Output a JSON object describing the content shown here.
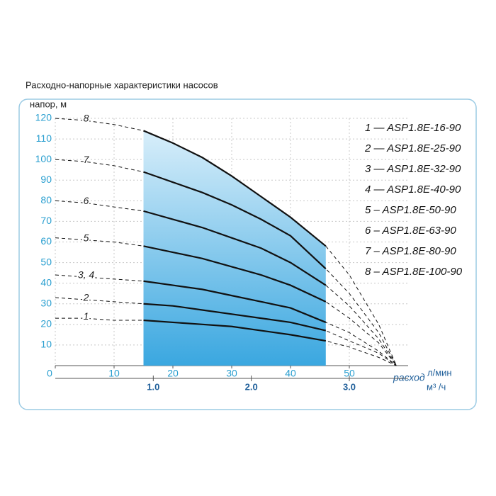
{
  "chart_data": {
    "type": "line",
    "title": "Расходно-напорные характеристики насосов",
    "ylabel": "напор, м",
    "xlabel": "расход",
    "xunit": "л/мин",
    "x2unit": "м³ /ч",
    "x": [
      0,
      5,
      10,
      15,
      20,
      25,
      30,
      35,
      40,
      46,
      50,
      55,
      58
    ],
    "xlim": [
      0,
      60
    ],
    "ylim": [
      0,
      120
    ],
    "xticks": [
      0,
      10,
      20,
      30,
      40,
      50
    ],
    "yticks": [
      10,
      20,
      30,
      40,
      50,
      60,
      70,
      80,
      90,
      100,
      110,
      120
    ],
    "x2lim": [
      0,
      3.6
    ],
    "x2ticks": [
      {
        "value": 1,
        "label": "1.0"
      },
      {
        "value": 2,
        "label": "2.0"
      },
      {
        "value": 3,
        "label": "3.0"
      }
    ],
    "operating_range": [
      15,
      46
    ],
    "grid": true,
    "series": [
      {
        "name": "8",
        "color": "#111111",
        "values": [
          120,
          119,
          117,
          114,
          108,
          101,
          92,
          82,
          72,
          58,
          44,
          20,
          0
        ]
      },
      {
        "name": "7",
        "color": "#111111",
        "values": [
          100,
          99,
          97,
          94,
          89,
          84,
          78,
          71,
          63,
          47,
          35,
          16,
          0
        ]
      },
      {
        "name": "6",
        "color": "#111111",
        "values": [
          80,
          79,
          77,
          75,
          71,
          67,
          62,
          57,
          50,
          39,
          29,
          13,
          0
        ]
      },
      {
        "name": "5",
        "color": "#111111",
        "values": [
          62,
          61,
          60,
          58,
          55,
          52,
          48,
          44,
          39,
          31,
          23,
          11,
          0
        ]
      },
      {
        "name": "3, 4",
        "color": "#111111",
        "values": [
          44,
          43,
          42,
          41,
          39,
          37,
          34,
          31,
          28,
          21,
          16,
          7,
          0
        ]
      },
      {
        "name": "2",
        "color": "#111111",
        "values": [
          33,
          32,
          31,
          30,
          29,
          27,
          25,
          23,
          21,
          17,
          12,
          6,
          0
        ]
      },
      {
        "name": "1",
        "color": "#111111",
        "values": [
          23,
          23,
          22,
          22,
          21,
          20,
          19,
          17,
          15,
          12,
          9,
          4,
          0
        ]
      }
    ],
    "legend": [
      "1 — ASP1.8E-16-90",
      "2 — ASP1.8E-25-90",
      "3 — ASP1.8E-32-90",
      "4 — ASP1.8E-40-90",
      "5 – ASP1.8E-50-90",
      "6 – ASP1.8E-63-90",
      "7 – ASP1.8E-80-90",
      "8 – ASP1.8E-100-90"
    ]
  }
}
